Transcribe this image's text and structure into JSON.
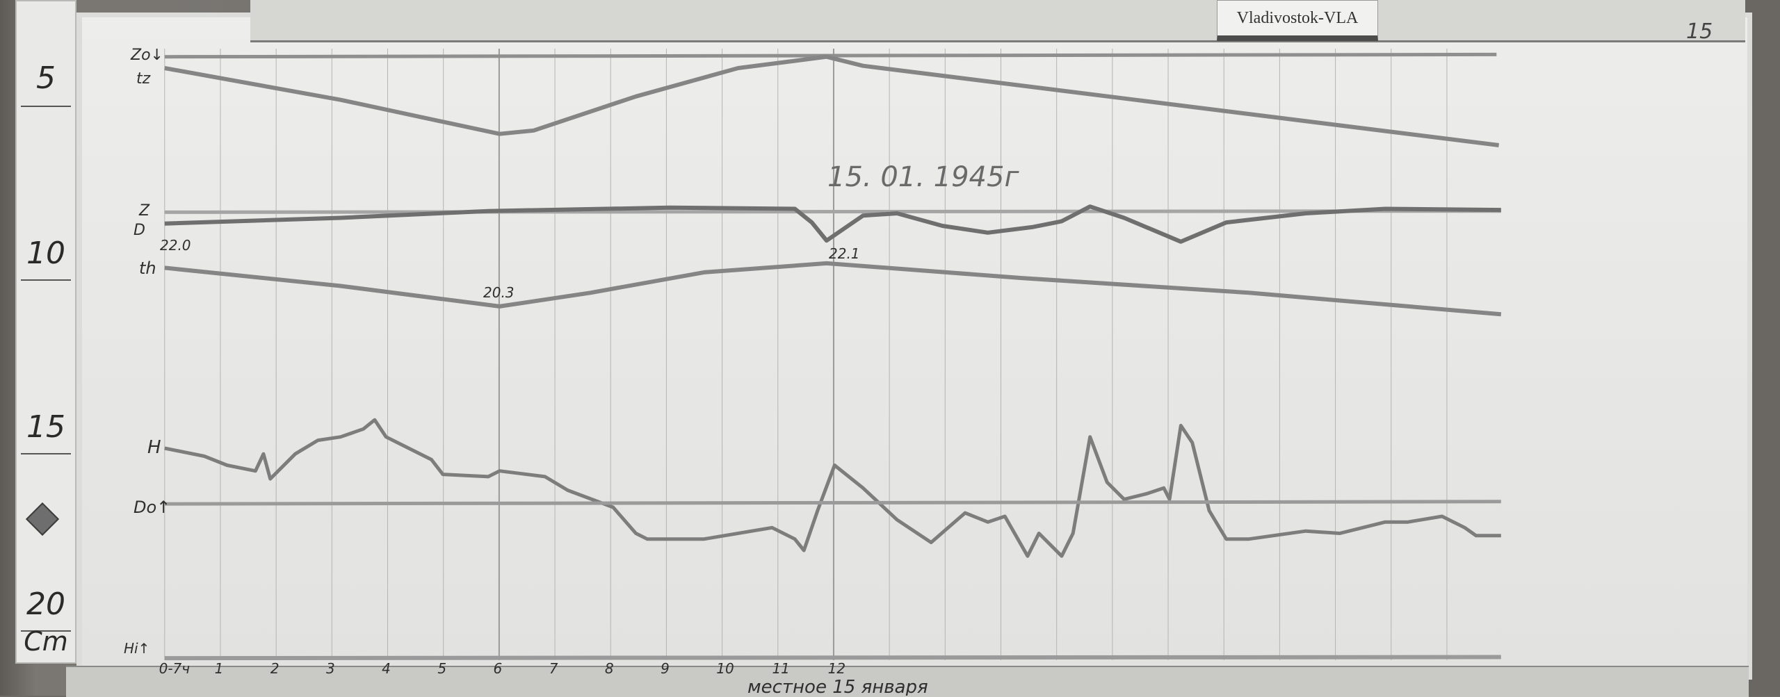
{
  "station_label": "Vladivostok-VLA",
  "sheet_number": "15",
  "date": "15. 01. 1945г",
  "ruler": {
    "marks": [
      "5",
      "10",
      "15",
      "20"
    ],
    "unit": "Cm"
  },
  "trace_labels": {
    "zo": "Zo↓",
    "tz": "tz",
    "z": "Z",
    "d": "D",
    "th": "th",
    "h": "H",
    "do": "Do↑",
    "hi": "Hi↑"
  },
  "temperature_labels": {
    "start": "22.0",
    "min": "20.3",
    "mid": "22.1"
  },
  "hour_labels": [
    "0-7ч",
    "1",
    "2",
    "3",
    "4",
    "5",
    "6",
    "7",
    "8",
    "9",
    "10",
    "11",
    "12"
  ],
  "footer_note": "местное 15 января",
  "colors": {
    "paper": "#e9e9e7",
    "trace": "#7a7a7a",
    "ink": "#2f2f2f"
  }
}
